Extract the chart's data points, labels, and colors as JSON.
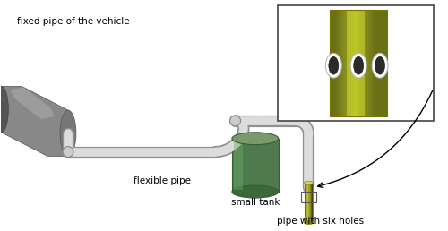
{
  "bg_color": "#ffffff",
  "labels": {
    "fixed_pipe": "fixed pipe of the vehicle",
    "flexible_pipe": "flexible pipe",
    "small_tank": "small tank",
    "six_holes": "pipe with six holes"
  },
  "pipe_color_light": "#dcdcdc",
  "pipe_color_dark": "#909090",
  "vehicle_pipe_dark": "#555555",
  "vehicle_pipe_mid": "#888888",
  "vehicle_pipe_light": "#aaaaaa",
  "tank_color_top": "#7a9a6a",
  "tank_color_body": "#4e7a4e",
  "tank_color_dark": "#3a5a3a",
  "holed_pipe_color": "#b8b840",
  "holed_pipe_dark": "#888800",
  "holed_pipe_light": "#d4d460"
}
